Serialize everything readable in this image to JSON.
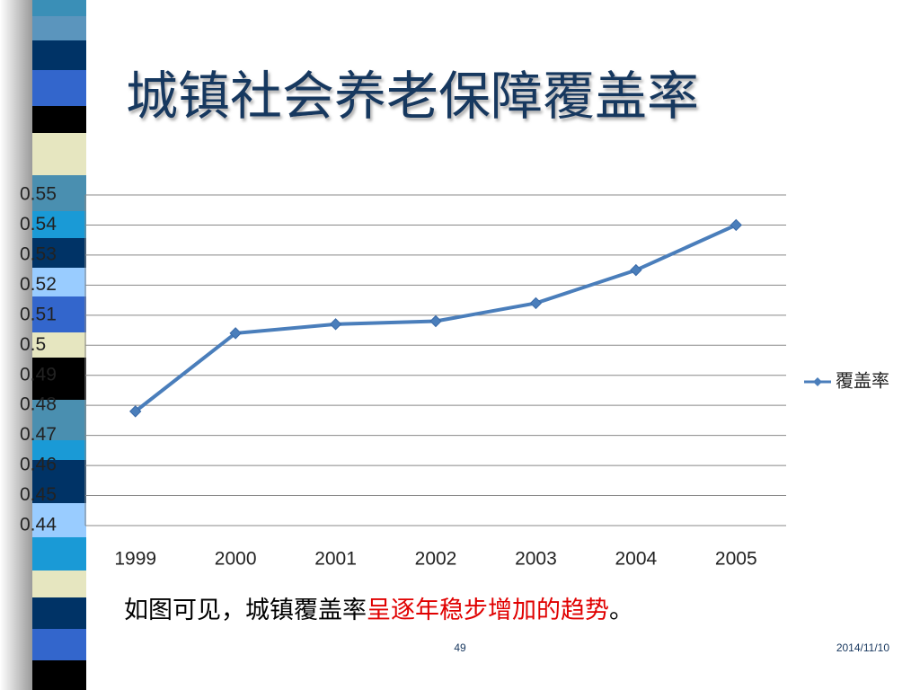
{
  "chart_data": {
    "type": "line",
    "title": "城镇社会养老保障覆盖率",
    "categories": [
      "1999",
      "2000",
      "2001",
      "2002",
      "2003",
      "2004",
      "2005"
    ],
    "series": [
      {
        "name": "覆盖率",
        "color": "#4a7ebb",
        "values": [
          0.478,
          0.504,
          0.507,
          0.508,
          0.514,
          0.525,
          0.54
        ]
      }
    ],
    "ylim": [
      0.44,
      0.55
    ],
    "yticks": [
      0.44,
      0.45,
      0.46,
      0.47,
      0.48,
      0.49,
      0.5,
      0.51,
      0.52,
      0.53,
      0.54,
      0.55
    ],
    "grid": true,
    "legend": "right"
  },
  "caption": {
    "lead": "如图可见，城镇覆盖率",
    "highlight": "呈逐年稳步增加的趋势",
    "end": "。"
  },
  "footer": {
    "page": "49",
    "date": "2014/11/10"
  }
}
